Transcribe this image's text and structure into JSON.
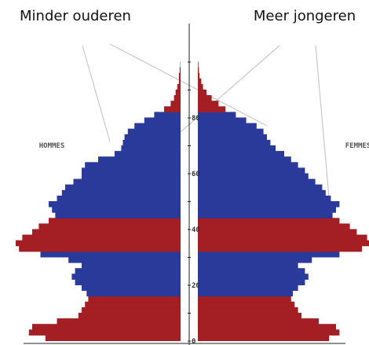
{
  "chart_data": {
    "type": "area",
    "annotations": {
      "left": "Minder ouderen",
      "right": "Meer jongeren"
    },
    "side_labels": {
      "left": "HOMMES",
      "right": "FEMMES"
    },
    "y_axis": {
      "ticks": [
        "0",
        "20",
        "40",
        "60",
        "80"
      ],
      "range": [
        0,
        100
      ]
    },
    "colors": {
      "red": "#a31f24",
      "blue": "#2a3a9b",
      "guide": "#c8c8c8",
      "axis": "#222222"
    },
    "series": [
      {
        "age": [
          0,
          2,
          4,
          6,
          8,
          10,
          12,
          14,
          16,
          18,
          20,
          22,
          24,
          26,
          28,
          30,
          32,
          34,
          36,
          38,
          40,
          42,
          44,
          46,
          48,
          50,
          52,
          54,
          56,
          58,
          60,
          62,
          64,
          66,
          68,
          70,
          72,
          74,
          76,
          78,
          80,
          82,
          84,
          86,
          88,
          90,
          92,
          94,
          96,
          98
        ],
        "hommes": [
          0.82,
          0.92,
          0.9,
          0.75,
          0.62,
          0.6,
          0.58,
          0.56,
          0.57,
          0.6,
          0.64,
          0.66,
          0.64,
          0.6,
          0.68,
          0.85,
          0.98,
          1.0,
          0.96,
          0.9,
          0.86,
          0.8,
          0.76,
          0.78,
          0.8,
          0.75,
          0.72,
          0.7,
          0.65,
          0.6,
          0.6,
          0.58,
          0.5,
          0.4,
          0.36,
          0.35,
          0.34,
          0.32,
          0.28,
          0.22,
          0.16,
          0.1,
          0.06,
          0.04,
          0.03,
          0.02,
          0.01,
          0.01,
          0.005,
          0.002
        ],
        "femmes": [
          0.76,
          0.82,
          0.8,
          0.7,
          0.6,
          0.58,
          0.56,
          0.54,
          0.55,
          0.58,
          0.62,
          0.64,
          0.62,
          0.58,
          0.66,
          0.82,
          0.95,
          1.0,
          0.98,
          0.92,
          0.88,
          0.82,
          0.78,
          0.8,
          0.82,
          0.77,
          0.74,
          0.72,
          0.68,
          0.64,
          0.62,
          0.58,
          0.54,
          0.5,
          0.45,
          0.42,
          0.4,
          0.38,
          0.34,
          0.28,
          0.22,
          0.16,
          0.12,
          0.08,
          0.05,
          0.03,
          0.02,
          0.01,
          0.006,
          0.003
        ]
      }
    ]
  }
}
